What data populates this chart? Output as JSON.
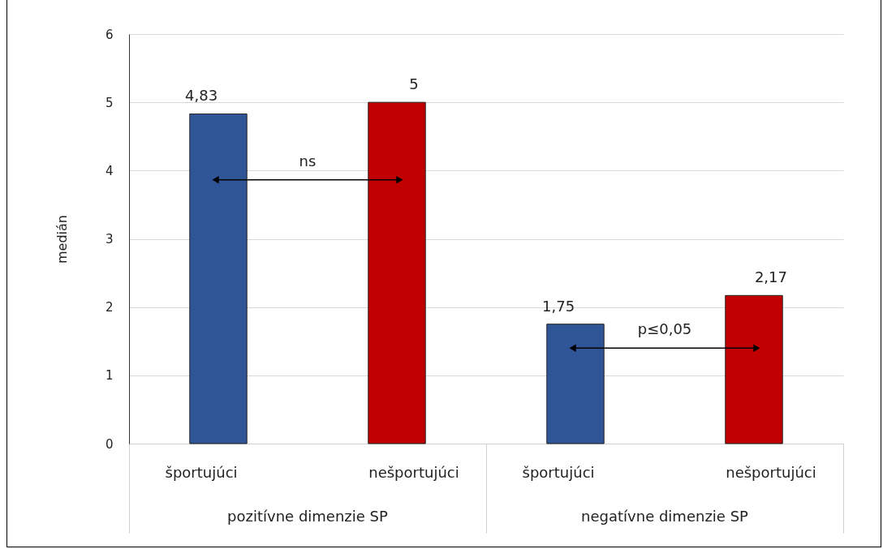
{
  "chart_data": {
    "type": "bar",
    "ylabel": "medián",
    "categories": [
      "pozitívne dimenzie SP",
      "negatívne dimenzie SP"
    ],
    "series": [
      {
        "name": "športujúci",
        "color": "#2f5597",
        "values": [
          4.83,
          1.75
        ],
        "value_labels": [
          "4,83",
          "1,75"
        ]
      },
      {
        "name": "nešportujúci",
        "color": "#c00000",
        "values": [
          5,
          2.17
        ],
        "value_labels": [
          "5",
          "2,17"
        ]
      }
    ],
    "ylim": [
      0,
      6
    ],
    "yticks": [
      0,
      1,
      2,
      3,
      4,
      5,
      6
    ],
    "grid": "y",
    "annotations": [
      "ns",
      "p≤0,05"
    ]
  }
}
